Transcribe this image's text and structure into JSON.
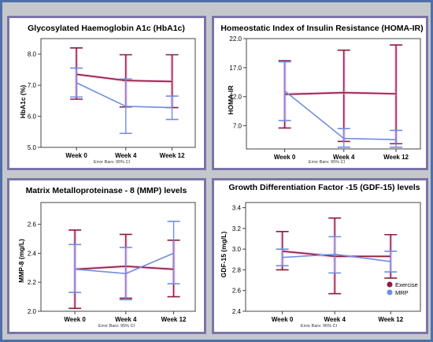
{
  "colors": {
    "background": "#c4c8cd",
    "outer_border": "#4f6fa8",
    "panel_border": "#7a74a8",
    "exercise": "#8b1c3c",
    "exercise_halo": "#f6a8d8",
    "mrp": "#6f8ee0"
  },
  "legend": {
    "items": [
      {
        "label": "Exercise",
        "color": "#8b1c3c"
      },
      {
        "label": "MRP",
        "color": "#6f8ee0"
      }
    ],
    "position": "bottom-right"
  },
  "chart_data": [
    {
      "type": "line",
      "title": "Glycosylated Haemoglobin A1c (HbA1c)",
      "ylabel": "HbA1c (%)",
      "xlabel": "",
      "note": "Error Bars: 95% CI",
      "categories": [
        "Week 0",
        "Week 4",
        "Week 12"
      ],
      "ylim": [
        5.0,
        8.5
      ],
      "yticks": [
        5.0,
        6.0,
        7.0,
        8.0
      ],
      "ytick_labels": [
        "5.0",
        "6.0",
        "7.0",
        "8.0"
      ],
      "grid": false,
      "series": [
        {
          "name": "Exercise",
          "values": [
            7.35,
            7.15,
            7.12
          ],
          "ci_low": [
            6.55,
            6.3,
            6.28
          ],
          "ci_high": [
            8.2,
            7.98,
            7.98
          ]
        },
        {
          "name": "MRP",
          "values": [
            7.08,
            6.32,
            6.28
          ],
          "ci_low": [
            6.62,
            5.45,
            5.9
          ],
          "ci_high": [
            7.55,
            7.2,
            6.65
          ]
        }
      ]
    },
    {
      "type": "line",
      "title": "Homeostatic Index of Insulin Resistance (HOMA-IR)",
      "ylabel": "HOMA-IR",
      "xlabel": "",
      "note": "Error Bars: 95% CI",
      "categories": [
        "Week 0",
        "Week 4",
        "Week 12"
      ],
      "ylim": [
        3.0,
        22.0
      ],
      "yticks": [
        7.0,
        12.0,
        17.0,
        22.0
      ],
      "ytick_labels": [
        "7.0",
        "12.0",
        "17.0",
        "22.0"
      ],
      "grid": false,
      "series": [
        {
          "name": "Exercise",
          "values": [
            12.4,
            12.7,
            12.5
          ],
          "ci_low": [
            6.6,
            4.3,
            3.9
          ],
          "ci_high": [
            18.2,
            20.0,
            20.9
          ]
        },
        {
          "name": "MRP",
          "values": [
            13.0,
            4.8,
            4.6
          ],
          "ci_low": [
            7.9,
            3.3,
            3.3
          ],
          "ci_high": [
            18.0,
            6.5,
            6.2
          ]
        }
      ]
    },
    {
      "type": "line",
      "title": "Matrix Metalloproteinase - 8 (MMP) levels",
      "ylabel": "MMP-8 (mg/L)",
      "xlabel": "",
      "note": "Error Bars: 95% CI",
      "categories": [
        "Week 0",
        "Week 4",
        "Week 12"
      ],
      "ylim": [
        2.0,
        2.75
      ],
      "yticks": [
        2.0,
        2.2,
        2.4,
        2.6
      ],
      "ytick_labels": [
        "2.0",
        "2.2",
        "2.4",
        "2.6"
      ],
      "grid": false,
      "series": [
        {
          "name": "Exercise",
          "values": [
            2.29,
            2.31,
            2.29
          ],
          "ci_low": [
            2.02,
            2.09,
            2.1
          ],
          "ci_high": [
            2.56,
            2.53,
            2.49
          ]
        },
        {
          "name": "MRP",
          "values": [
            2.29,
            2.26,
            2.4
          ],
          "ci_low": [
            2.13,
            2.08,
            2.19
          ],
          "ci_high": [
            2.46,
            2.44,
            2.62
          ]
        }
      ]
    },
    {
      "type": "line",
      "title": "Growth Differentiation Factor -15 (GDF-15) levels",
      "ylabel": "GDF-15 (mg/L)",
      "xlabel": "",
      "note": "Error Bars: 95% CI",
      "categories": [
        "Week 0",
        "Week 4",
        "Week 12"
      ],
      "ylim": [
        2.4,
        3.45
      ],
      "yticks": [
        2.4,
        2.6,
        2.8,
        3.0,
        3.2,
        3.4
      ],
      "ytick_labels": [
        "2.4",
        "2.6",
        "2.8",
        "3.0",
        "3.2",
        "3.4"
      ],
      "grid": false,
      "series": [
        {
          "name": "Exercise",
          "values": [
            2.98,
            2.93,
            2.93
          ],
          "ci_low": [
            2.8,
            2.57,
            2.72
          ],
          "ci_high": [
            3.17,
            3.3,
            3.14
          ]
        },
        {
          "name": "MRP",
          "values": [
            2.92,
            2.95,
            2.88
          ],
          "ci_low": [
            2.84,
            2.77,
            2.78
          ],
          "ci_high": [
            3.0,
            3.12,
            2.98
          ]
        }
      ]
    }
  ]
}
